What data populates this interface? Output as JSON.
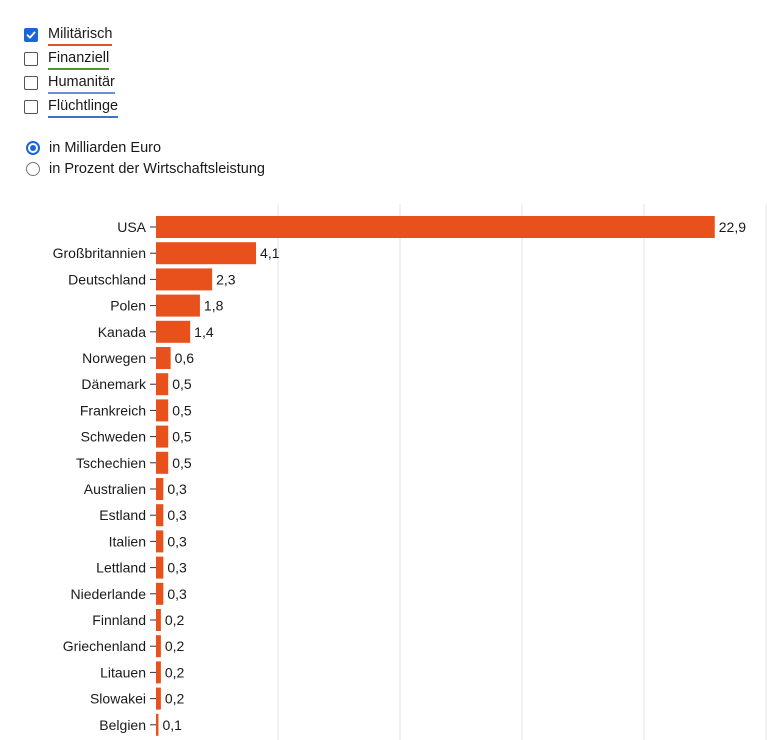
{
  "filters": {
    "checkboxes": [
      {
        "label": "Militärisch",
        "checked": true,
        "color": "#e8501c"
      },
      {
        "label": "Finanziell",
        "checked": false,
        "color": "#4a9a2a"
      },
      {
        "label": "Humanitär",
        "checked": false,
        "color": "#6b8fd6"
      },
      {
        "label": "Flüchtlinge",
        "checked": false,
        "color": "#3f72c4"
      }
    ],
    "radios": [
      {
        "label": "in Milliarden Euro",
        "selected": true
      },
      {
        "label": "in Prozent der Wirtschaftsleistung",
        "selected": false
      }
    ]
  },
  "colors": {
    "bar": "#e8501c",
    "accent": "#1a66d9",
    "grid": "#e3e3e3"
  },
  "chart_data": {
    "type": "bar",
    "orientation": "horizontal",
    "categories": [
      "USA",
      "Großbritannien",
      "Deutschland",
      "Polen",
      "Kanada",
      "Norwegen",
      "Dänemark",
      "Frankreich",
      "Schweden",
      "Tschechien",
      "Australien",
      "Estland",
      "Italien",
      "Lettland",
      "Niederlande",
      "Finnland",
      "Griechenland",
      "Litauen",
      "Slowakei",
      "Belgien"
    ],
    "values": [
      22.9,
      4.1,
      2.3,
      1.8,
      1.4,
      0.6,
      0.5,
      0.5,
      0.5,
      0.5,
      0.3,
      0.3,
      0.3,
      0.3,
      0.3,
      0.2,
      0.2,
      0.2,
      0.2,
      0.1
    ],
    "value_labels": [
      "22,9",
      "4,1",
      "2,3",
      "1,8",
      "1,4",
      "0,6",
      "0,5",
      "0,5",
      "0,5",
      "0,5",
      "0,3",
      "0,3",
      "0,3",
      "0,3",
      "0,3",
      "0,2",
      "0,2",
      "0,2",
      "0,2",
      "0,1"
    ],
    "xlim": [
      0,
      25
    ],
    "gridlines": [
      5,
      10,
      15,
      20,
      25
    ],
    "grid": true
  }
}
